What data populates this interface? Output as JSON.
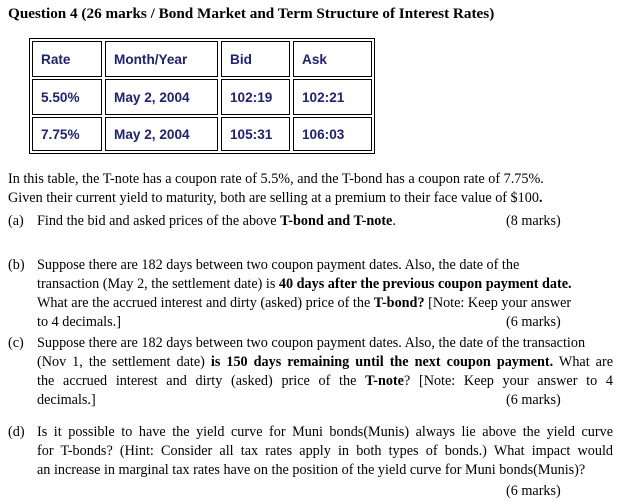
{
  "title": "Question 4 (26 marks / Bond Market and Term Structure of Interest Rates)",
  "table": {
    "headers": [
      "Rate",
      "Month/Year",
      "Bid",
      "Ask"
    ],
    "rows": [
      [
        "5.50%",
        "May 2, 2004",
        "102:19",
        "102:21"
      ],
      [
        "7.75%",
        "May 2, 2004",
        "105:31",
        "106:03"
      ]
    ]
  },
  "intro": {
    "line1": "In this table, the T-note has a coupon rate of 5.5%, and the T-bond has a coupon rate of 7.75%.",
    "line2": "Given their current yield to maturity, both are selling at a premium to their face value of $100",
    "line2_end": "."
  },
  "parts": {
    "a": {
      "label": "(a)",
      "text": "Find the bid and asked prices of the above ",
      "bold": "T-bond and T-note",
      "end": ".",
      "marks": "(8 marks)"
    },
    "b": {
      "label": "(b)",
      "l1": "Suppose there are 182 days between two coupon payment dates. Also, the date of the",
      "l2a": "transaction (May 2, the settlement date) is ",
      "l2b": "40 days after the previous coupon payment date.",
      "l3a": "What are the accrued interest and dirty (asked) price of the ",
      "l3b": "T-bond?",
      "l3c": " [Note: Keep your answer",
      "l4": "to 4 decimals.]",
      "marks": "(6 marks)"
    },
    "c": {
      "label": "(c)",
      "l1": "Suppose there are 182 days between two coupon payment dates. Also, the date of the transaction",
      "l2a": "(Nov 1, the settlement date) ",
      "l2b": "is 150 days remaining until the next coupon payment.",
      "l2c": " What are",
      "l3a": "the accrued interest and dirty (asked) price of the ",
      "l3b": "T-note",
      "l3c": "? [Note: Keep your answer to 4",
      "l4": "decimals.]",
      "marks": "(6 marks)"
    },
    "d": {
      "label": "(d)",
      "l1": "Is it possible to have the yield curve for Muni bonds(Munis) always lie above the yield curve",
      "l2": "for T-bonds? (Hint: Consider all tax rates apply in both types of bonds.) What impact would",
      "l3": "an increase in marginal tax rates have on the position of the yield curve for Muni bonds(Munis)?",
      "marks": "(6 marks)"
    }
  }
}
